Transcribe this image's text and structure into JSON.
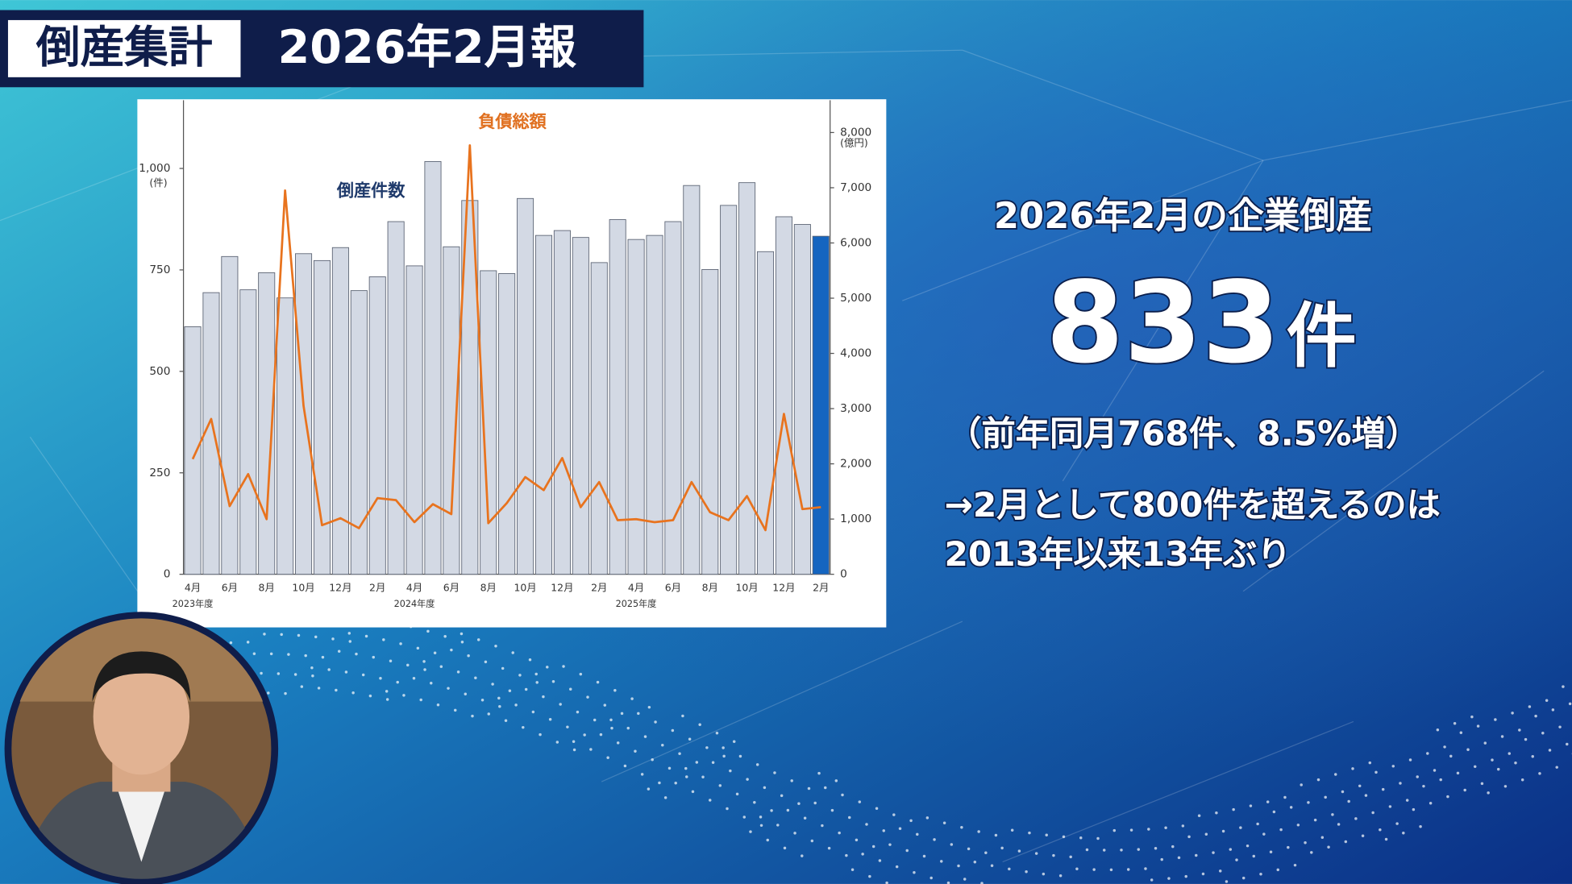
{
  "header": {
    "label": "倒産集計",
    "title": "2026年2月報"
  },
  "chart_data": {
    "type": "bar",
    "categories": [
      "4月",
      null,
      "6月",
      null,
      "8月",
      null,
      "10月",
      null,
      "12月",
      null,
      "2月",
      null,
      "4月",
      null,
      "6月",
      null,
      "8月",
      null,
      "10月",
      null,
      "12月",
      null,
      "2月",
      null,
      "4月",
      null,
      "6月",
      null,
      "8月",
      null,
      "10月",
      null,
      "12月",
      null,
      "2月"
    ],
    "group_labels": [
      "2023年度",
      "2024年度",
      "2025年度"
    ],
    "ylabel": "(件)",
    "y2label": "(億円)",
    "ylim": [
      0,
      1168
    ],
    "yticks": [
      0,
      250,
      500,
      750,
      {
        "value": 1000,
        "label": "1,000"
      }
    ],
    "y2lim": [
      0,
      8584
    ],
    "y2ticks": [
      0,
      {
        "value": 1000,
        "label": "1,000"
      },
      {
        "value": 2000,
        "label": "2,000"
      },
      {
        "value": 3000,
        "label": "3,000"
      },
      {
        "value": 4000,
        "label": "4,000"
      },
      {
        "value": 5000,
        "label": "5,000"
      },
      {
        "value": 6000,
        "label": "6,000"
      },
      {
        "value": 7000,
        "label": "7,000"
      },
      {
        "value": 8000,
        "label": "8,000"
      }
    ],
    "series": [
      {
        "name": "倒産件数",
        "type": "bar",
        "color": "#d3d9e4",
        "colors": [
          "#d3d9e4",
          "#d3d9e4",
          "#d3d9e4",
          "#d3d9e4",
          "#d3d9e4",
          "#d3d9e4",
          "#d3d9e4",
          "#d3d9e4",
          "#d3d9e4",
          "#d3d9e4",
          "#d3d9e4",
          "#d3d9e4",
          "#d3d9e4",
          "#d3d9e4",
          "#d3d9e4",
          "#d3d9e4",
          "#d3d9e4",
          "#d3d9e4",
          "#d3d9e4",
          "#d3d9e4",
          "#d3d9e4",
          "#d3d9e4",
          "#d3d9e4",
          "#d3d9e4",
          "#d3d9e4",
          "#d3d9e4",
          "#d3d9e4",
          "#d3d9e4",
          "#d3d9e4",
          "#d3d9e4",
          "#d3d9e4",
          "#d3d9e4",
          "#d3d9e4",
          "#d3d9e4",
          "#1565c0"
        ],
        "values": [
          610,
          694,
          783,
          701,
          743,
          681,
          790,
          773,
          805,
          699,
          733,
          869,
          760,
          1017,
          807,
          921,
          748,
          741,
          926,
          835,
          847,
          830,
          768,
          874,
          825,
          835,
          869,
          958,
          751,
          909,
          965,
          795,
          881,
          862,
          833
        ]
      },
      {
        "name": "負債総額",
        "type": "line",
        "axis": "y2",
        "color": "#e8731e",
        "values": [
          2087,
          2813,
          1234,
          1815,
          998,
          6951,
          3049,
          889,
          1016,
          835,
          1379,
          1343,
          944,
          1270,
          1089,
          7768,
          926,
          1289,
          1760,
          1524,
          2105,
          1216,
          1670,
          980,
          998,
          944,
          980,
          1670,
          1125,
          980,
          1416,
          799,
          2904,
          1180,
          1216
        ]
      }
    ]
  },
  "summary": {
    "heading": "2026年2月の企業倒産",
    "count": "833",
    "unit": "件",
    "comparison": "（前年同月768件、8.5%増）",
    "note_lines": [
      "→2月として800件を超えるのは",
      "2013年以来13年ぶり"
    ]
  }
}
